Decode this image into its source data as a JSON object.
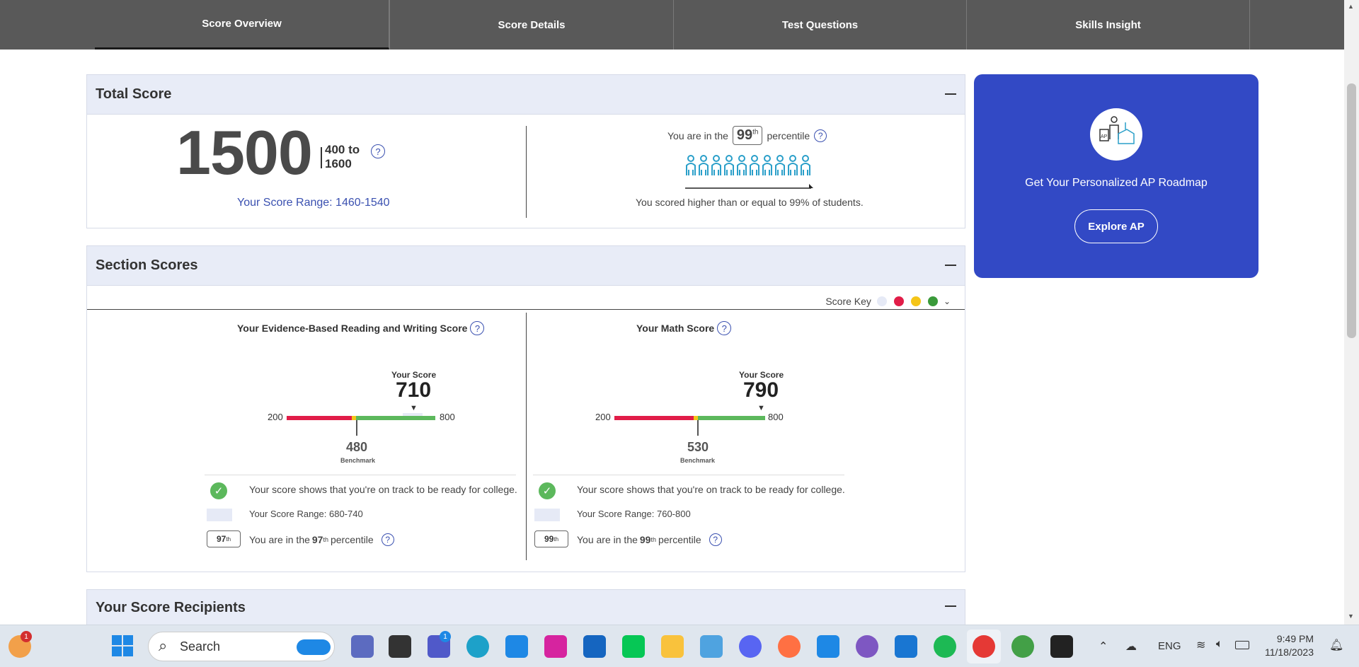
{
  "tabs": [
    "Score Overview",
    "Score Details",
    "Test Questions",
    "Skills Insight"
  ],
  "total": {
    "title": "Total Score",
    "score": "1500",
    "range_label_1": "400 to",
    "range_label_2": "1600",
    "score_range": "Your Score Range: 1460-1540",
    "percentile_prefix": "You are in the",
    "percentile_value": "99",
    "percentile_sup": "th",
    "percentile_suffix": "percentile",
    "higher_text": "You scored higher than or equal to 99% of students."
  },
  "ap": {
    "text": "Get Your Personalized AP Roadmap",
    "button": "Explore AP",
    "logo_text": "AP"
  },
  "section": {
    "title": "Section Scores",
    "score_key": "Score Key",
    "key_colors": [
      "#e6eaf6",
      "#e11d48",
      "#f5c518",
      "#3a9a3a"
    ],
    "ebrw": {
      "title": "Your Evidence-Based Reading and Writing Score",
      "your_score_label": "Your Score",
      "score": "710",
      "min": "200",
      "max": "800",
      "benchmark": "480",
      "benchmark_label": "Benchmark",
      "on_track": "Your score shows that you're on track to be ready for college.",
      "range": "Your Score Range: 680-740",
      "pct_badge": "97",
      "pct_sup": "th",
      "pct_prefix": "You are in the",
      "pct_value": "97",
      "pct_suffix": "percentile"
    },
    "math": {
      "title": "Your Math Score",
      "your_score_label": "Your Score",
      "score": "790",
      "min": "200",
      "max": "800",
      "benchmark": "530",
      "benchmark_label": "Benchmark",
      "on_track": "Your score shows that you're on track to be ready for college.",
      "range": "Your Score Range: 760-800",
      "pct_badge": "99",
      "pct_sup": "th",
      "pct_prefix": "You are in the",
      "pct_value": "99",
      "pct_suffix": "percentile"
    }
  },
  "recipients": {
    "title": "Your Score Recipients"
  },
  "taskbar": {
    "search": "Search",
    "lang": "ENG",
    "time": "9:49 PM",
    "date": "11/18/2023",
    "badge_weather": "1",
    "badge_teams": "1"
  }
}
